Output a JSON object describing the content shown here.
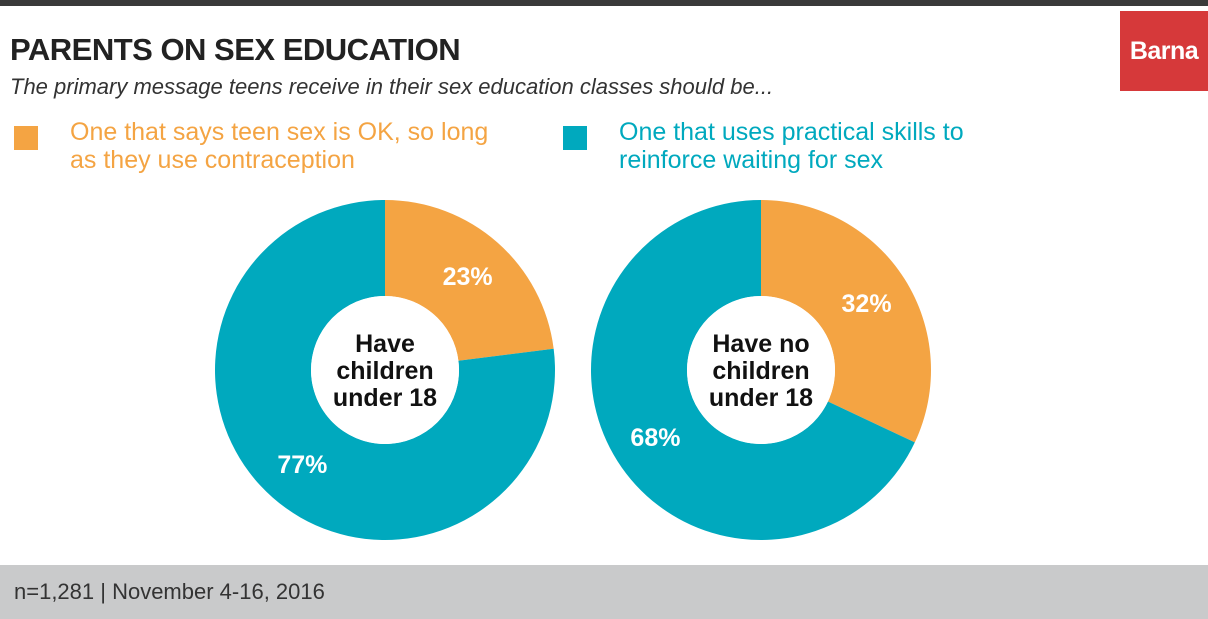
{
  "title": "PARENTS ON SEX EDUCATION",
  "subtitle": "The primary message teens receive in their sex education classes should be...",
  "brand": "Barna",
  "colors": {
    "orange": "#f4a443",
    "teal": "#00a9be",
    "brand_red": "#d6393a"
  },
  "footer": "n=1,281  |  November 4-16, 2016",
  "chart_data": {
    "type": "pie",
    "legend": [
      {
        "name": "One that says teen sex is OK, so long as they use contraception",
        "color": "#f4a443"
      },
      {
        "name": "One that uses practical skills to reinforce waiting for sex",
        "color": "#00a9be"
      }
    ],
    "charts": [
      {
        "center_label": "Have children under 18",
        "slices": [
          {
            "series": "One that says teen sex is OK, so long as they use contraception",
            "value": 23,
            "label": "23%"
          },
          {
            "series": "One that uses practical skills to reinforce waiting for sex",
            "value": 77,
            "label": "77%"
          }
        ]
      },
      {
        "center_label": "Have no children under 18",
        "slices": [
          {
            "series": "One that says teen sex is OK, so long as they use contraception",
            "value": 32,
            "label": "32%"
          },
          {
            "series": "One that uses practical skills to reinforce waiting for sex",
            "value": 68,
            "label": "68%"
          }
        ]
      }
    ]
  }
}
